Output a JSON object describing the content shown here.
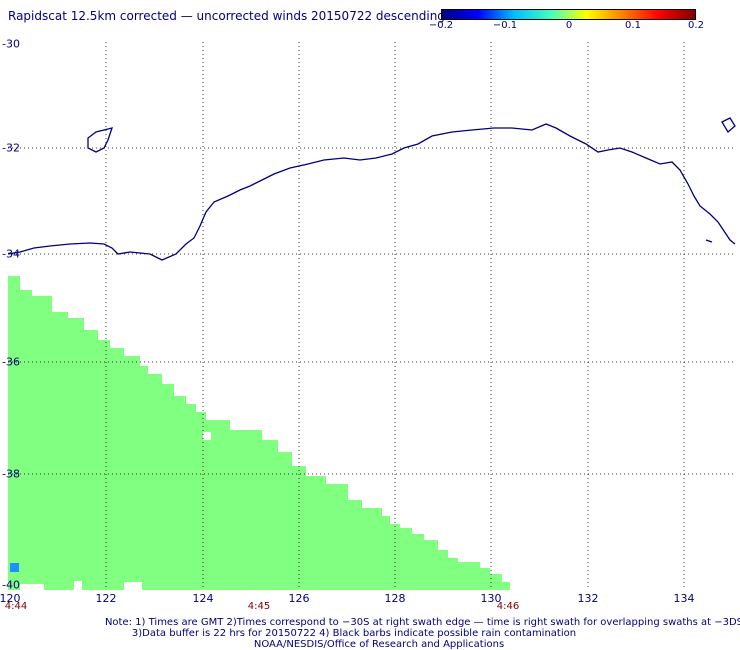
{
  "title": "Rapidscat 12.5km corrected — uncorrected winds 20150722 descending",
  "colorbar": {
    "ticks": [
      "−0.2",
      "−0.1",
      "0",
      "0.1",
      "0.2"
    ],
    "colors": [
      "#00007f",
      "#0000ff",
      "#00bfff",
      "#40ffbf",
      "#ffff00",
      "#ff8000",
      "#ff0000",
      "#7f0000"
    ]
  },
  "map": {
    "lon_labels": [
      "120",
      "122",
      "124",
      "126",
      "128",
      "130",
      "132",
      "134"
    ],
    "lat_labels": [
      "-30",
      "-32",
      "-34",
      "-36",
      "-38",
      "-40"
    ],
    "lon_range": [
      120,
      135
    ],
    "lat_range": [
      -40,
      -30
    ],
    "coastline_color": "#00007f",
    "swath_color": "#80ff80",
    "spot_color": "#1e90ff"
  },
  "times": [
    "4:44",
    "4:45",
    "4:46"
  ],
  "notes": [
    "Note: 1) Times are GMT 2)Times correspond to −30S at right swath edge — time is right swath for overlapping swaths at −3DS",
    "3)Data buffer is 22 hrs for 20150722 4) Black barbs indicate possible rain contamination",
    "NOAA/NESDIS/Office of Research and Applications"
  ]
}
